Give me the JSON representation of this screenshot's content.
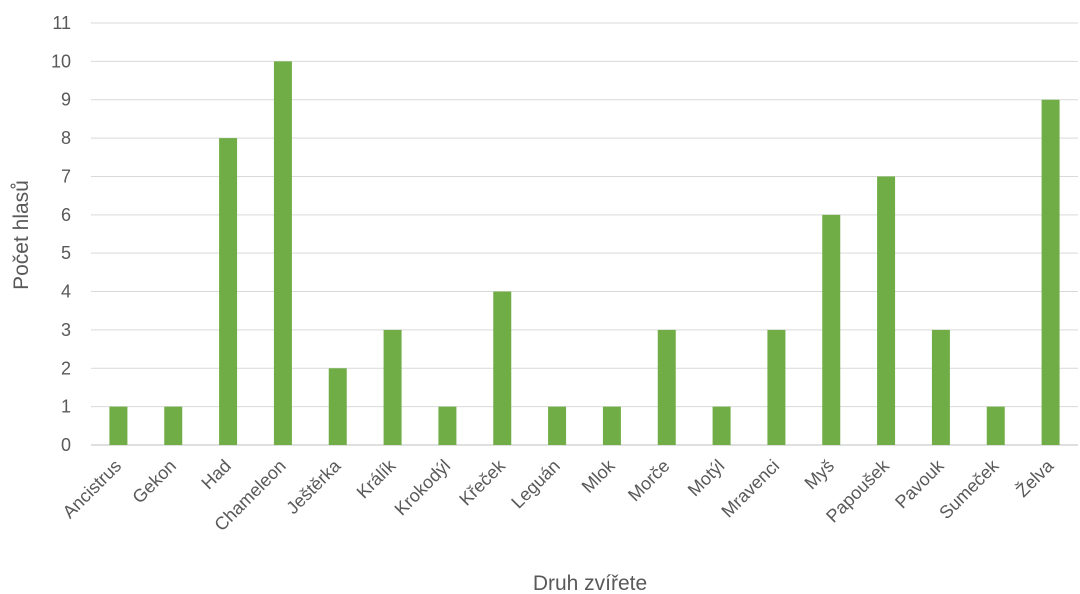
{
  "chart_data": {
    "type": "bar",
    "categories": [
      "Ancistrus",
      "Gekon",
      "Had",
      "Chameleon",
      "Ještěrka",
      "Králík",
      "Krokodýl",
      "Křeček",
      "Leguán",
      "Mlok",
      "Morče",
      "Motýl",
      "Mravenci",
      "Myš",
      "Papoušek",
      "Pavouk",
      "Sumeček",
      "Želva"
    ],
    "values": [
      1,
      1,
      8,
      10,
      2,
      3,
      1,
      4,
      1,
      1,
      3,
      1,
      3,
      6,
      7,
      3,
      1,
      9
    ],
    "xlabel": "Druh zvířete",
    "ylabel": "Počet hlasů",
    "ylim": [
      0,
      11
    ],
    "yticks": [
      0,
      1,
      2,
      3,
      4,
      5,
      6,
      7,
      8,
      9,
      10,
      11
    ],
    "grid": true,
    "bar_color": "#70ad47"
  }
}
